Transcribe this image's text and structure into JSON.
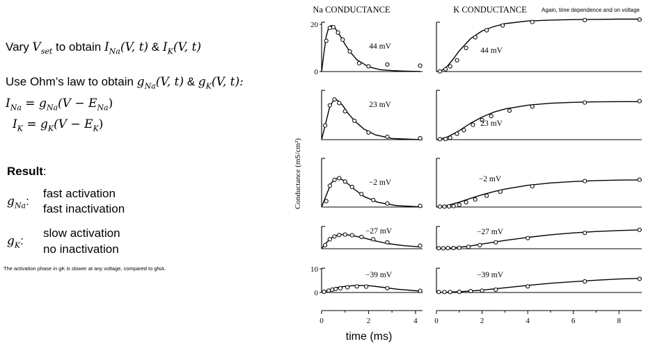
{
  "left": {
    "line1": {
      "pre": "Vary ",
      "v": "V",
      "vsub": "set",
      "mid": " to obtain ",
      "i1": "I",
      "i1sub": "Na",
      "i1args": "(V, t)",
      "amp": " & ",
      "i2": "I",
      "i2sub": "K",
      "i2args": "(V, t)"
    },
    "line2": {
      "pre": "Use Ohm’s law to obtain ",
      "g1": "g",
      "g1sub": "Na",
      "g1args": "(V, t)",
      "amp": " & ",
      "g2": "g",
      "g2sub": "K",
      "g2args": "(V, t):"
    },
    "eq1": {
      "lhs": "I",
      "lhssub": "Na",
      "eq": " = ",
      "g": "g",
      "gsub": "Na",
      "open": "(V − ",
      "e": "E",
      "esub": "Na",
      "close": ")"
    },
    "eq2": {
      "lhs": "I",
      "lhssub": "K",
      "eq": " = ",
      "g": "g",
      "gsub": "K",
      "open": "(V − ",
      "e": "E",
      "esub": "K",
      "close": ")"
    },
    "result_label": "Result",
    "result_colon": ":",
    "gna": {
      "sym": "g",
      "sub": "Na",
      "colon": ":",
      "lines": [
        "fast activation",
        "fast inactivation"
      ]
    },
    "gk": {
      "sym": "g",
      "sub": "K",
      "colon": ":",
      "lines": [
        "slow activation",
        "no inactivation"
      ]
    },
    "footnote": "The activation phase in gK is slower at any voltage, compared to gNA."
  },
  "chart_data": {
    "type": "line",
    "na_title": "Na CONDUCTANCE",
    "k_title": "K CONDUCTANCE",
    "top_note": "Again, time dependence and on voltage",
    "ylabel": "Conductance (mS/cm²)",
    "xlabel": "time (ms)",
    "na_xlim": [
      0,
      4.3
    ],
    "k_xlim": [
      0,
      9
    ],
    "na_xticks": [
      "0",
      "2",
      "4"
    ],
    "k_xticks": [
      "0",
      "2",
      "4",
      "6",
      "8"
    ],
    "na_ylabels": [
      {
        "panel": 0,
        "value": 20,
        "label": "20"
      },
      {
        "panel": 0,
        "value": 0,
        "label": "0"
      },
      {
        "panel": 4,
        "value": 10,
        "label": "10"
      },
      {
        "panel": 4,
        "value": 0,
        "label": "0"
      }
    ],
    "panels": [
      {
        "voltage": "44 mV",
        "na": {
          "x": [
            0,
            0.1,
            0.2,
            0.3,
            0.4,
            0.5,
            0.6,
            0.8,
            1.0,
            1.2,
            1.5,
            2.0,
            2.5,
            3.0,
            3.5,
            4.0,
            4.2
          ],
          "y": [
            0,
            8,
            15,
            18.5,
            19.5,
            19,
            18,
            15,
            11.5,
            8.5,
            5,
            2,
            0.8,
            0.4,
            0.2,
            0.1,
            0.1
          ]
        },
        "na_points": {
          "x": [
            0.2,
            0.35,
            0.5,
            0.7,
            0.9,
            1.2,
            1.6,
            2.0,
            2.8,
            4.2
          ],
          "y": [
            13,
            18.5,
            18.8,
            16.5,
            13.5,
            8.5,
            3.5,
            2.2,
            3,
            2.5
          ]
        },
        "k": {
          "x": [
            0,
            0.25,
            0.5,
            0.75,
            1,
            1.5,
            2,
            2.5,
            3,
            4,
            5,
            6,
            7,
            8,
            9
          ],
          "y": [
            0,
            0.6,
            2.5,
            5.5,
            8.8,
            14,
            17.2,
            19,
            20.3,
            21.4,
            21.8,
            22,
            22.1,
            22.2,
            22.2
          ]
        },
        "k_points": {
          "x": [
            0.15,
            0.4,
            0.6,
            0.9,
            1.3,
            1.7,
            2.2,
            2.9,
            4.2,
            6.5,
            8.9
          ],
          "y": [
            0.1,
            1,
            2.2,
            4.8,
            10,
            14.5,
            17.5,
            19.5,
            21,
            21.8,
            22
          ]
        }
      },
      {
        "voltage": "23 mV",
        "na": {
          "x": [
            0,
            0.2,
            0.35,
            0.5,
            0.6,
            0.7,
            0.9,
            1.1,
            1.4,
            1.8,
            2.3,
            3.0,
            4.2
          ],
          "y": [
            0,
            8,
            14,
            16.5,
            17,
            16.5,
            14.5,
            11.5,
            8,
            4.5,
            2,
            0.5,
            0
          ]
        },
        "na_points": {
          "x": [
            0.15,
            0.35,
            0.55,
            0.75,
            1.0,
            1.4,
            2.0,
            2.8,
            4.2
          ],
          "y": [
            6,
            14.5,
            17,
            15.5,
            12,
            8,
            3,
            1.2,
            0.6
          ]
        },
        "k": {
          "x": [
            0,
            0.25,
            0.5,
            1,
            1.5,
            2,
            2.5,
            3,
            4,
            5,
            6,
            7,
            8,
            9
          ],
          "y": [
            0,
            0.5,
            1.2,
            3.8,
            7,
            9.6,
            11.6,
            13,
            14.6,
            15.4,
            15.8,
            16,
            16.1,
            16.1
          ]
        },
        "k_points": {
          "x": [
            0.15,
            0.4,
            0.6,
            0.9,
            1.2,
            1.6,
            2.0,
            2.4,
            3.2,
            4.2,
            6.5,
            8.9
          ],
          "y": [
            0.2,
            0.3,
            0.8,
            2.5,
            4,
            6.3,
            8.3,
            10,
            12.3,
            14,
            15.7,
            16.3
          ]
        }
      },
      {
        "voltage": "−2 mV",
        "na": {
          "x": [
            0,
            0.2,
            0.4,
            0.55,
            0.7,
            0.9,
            1.1,
            1.4,
            1.8,
            2.4,
            3.2,
            4.2
          ],
          "y": [
            0,
            5,
            10,
            11.8,
            12.2,
            11.5,
            10,
            7.5,
            4.5,
            2,
            0.6,
            0.1
          ]
        },
        "na_points": {
          "x": [
            0.2,
            0.35,
            0.55,
            0.75,
            1.0,
            1.3,
            1.7,
            2.2,
            2.8,
            4.2
          ],
          "y": [
            2.5,
            9,
            11.5,
            12.2,
            10.8,
            8.5,
            5.5,
            3,
            1.5,
            0.5
          ]
        },
        "k": {
          "x": [
            0,
            0.5,
            1,
            1.5,
            2,
            2.5,
            3,
            4,
            5,
            6,
            7,
            8,
            9
          ],
          "y": [
            0,
            0.7,
            2.1,
            3.7,
            5.2,
            6.5,
            7.6,
            9.2,
            10.2,
            10.8,
            11.2,
            11.4,
            11.5
          ]
        },
        "k_points": {
          "x": [
            0.15,
            0.35,
            0.55,
            0.75,
            1.0,
            1.3,
            1.7,
            2.2,
            2.8,
            4.2,
            6.5,
            8.9
          ],
          "y": [
            0.2,
            0.2,
            0.3,
            0.4,
            1,
            2,
            3.2,
            4.8,
            6.5,
            8.8,
            11,
            11.6
          ]
        }
      },
      {
        "voltage": "−27 mV",
        "na": {
          "x": [
            0,
            0.2,
            0.4,
            0.6,
            0.8,
            1.0,
            1.3,
            1.7,
            2.2,
            2.8,
            3.5,
            4.2
          ],
          "y": [
            0,
            2.5,
            4.5,
            5.5,
            6,
            6,
            5.6,
            4.8,
            3.5,
            2.2,
            1.3,
            0.8
          ]
        },
        "na_points": {
          "x": [
            0.15,
            0.35,
            0.55,
            0.75,
            1.0,
            1.3,
            1.7,
            2.2,
            2.8,
            4.2
          ],
          "y": [
            1.5,
            4,
            5.2,
            5.8,
            6,
            5.7,
            5,
            4,
            2.7,
            1.3
          ]
        },
        "k": {
          "x": [
            0,
            0.5,
            1,
            1.5,
            2,
            3,
            4,
            5,
            6,
            7,
            8,
            9
          ],
          "y": [
            0,
            0.2,
            0.6,
            1.2,
            2,
            3.5,
            4.8,
            5.9,
            6.7,
            7.3,
            7.7,
            8
          ]
        },
        "k_points": {
          "x": [
            0.1,
            0.3,
            0.5,
            0.75,
            1.0,
            1.4,
            1.9,
            2.6,
            4.0,
            6.5,
            8.9
          ],
          "y": [
            0.2,
            0.2,
            0.3,
            0.3,
            0.4,
            0.8,
            1.5,
            2.7,
            4.5,
            6.7,
            8
          ]
        }
      },
      {
        "voltage": "−39 mV",
        "na": {
          "x": [
            0,
            0.3,
            0.6,
            1.0,
            1.5,
            2.0,
            2.6,
            3.2,
            4.2
          ],
          "y": [
            0,
            1,
            2,
            2.6,
            3,
            2.9,
            2.2,
            1.4,
            0.6
          ]
        },
        "na_points": {
          "x": [
            0.1,
            0.3,
            0.45,
            0.6,
            0.8,
            1.1,
            1.5,
            1.9,
            2.8,
            4.2
          ],
          "y": [
            0.3,
            0.8,
            1.2,
            1.5,
            1.8,
            2.2,
            2.6,
            2.5,
            1.8,
            0.7
          ]
        },
        "k": {
          "x": [
            0,
            1,
            2,
            3,
            4,
            5,
            6,
            7,
            8,
            9
          ],
          "y": [
            0,
            0.3,
            1,
            2,
            3,
            3.9,
            4.6,
            5.2,
            5.7,
            6
          ]
        },
        "k_points": {
          "x": [
            0.1,
            0.35,
            0.6,
            1.0,
            1.5,
            2.0,
            2.6,
            4.0,
            6.5,
            8.9
          ],
          "y": [
            0.2,
            0.2,
            0.2,
            0.3,
            0.6,
            0.8,
            1.2,
            2.6,
            4.7,
            5.8
          ]
        }
      }
    ]
  }
}
